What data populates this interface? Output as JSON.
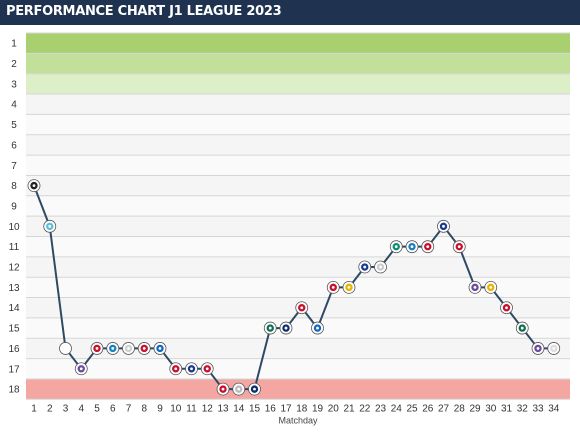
{
  "header": {
    "title": "PERFORMANCE CHART J1 LEAGUE 2023"
  },
  "colors": {
    "header_bg": "#1f3350",
    "line": "#2e4a63",
    "band_rank1": "#a8d06e",
    "band_rank2": "#c3e09a",
    "band_rank3": "#dcefc6",
    "band_relegation": "#f4a6a3"
  },
  "chart_data": {
    "type": "line",
    "title": "PERFORMANCE CHART J1 LEAGUE 2023",
    "xlabel": "Matchday",
    "ylabel": "",
    "y_tick_labels": [
      "1",
      "2",
      "3",
      "4",
      "5",
      "6",
      "7",
      "8",
      "9",
      "10",
      "11",
      "12",
      "13",
      "14",
      "15",
      "16",
      "17",
      "18"
    ],
    "ylim": [
      1,
      18
    ],
    "y_inverted": true,
    "grid": true,
    "x": [
      1,
      2,
      3,
      4,
      5,
      6,
      7,
      8,
      9,
      10,
      11,
      12,
      13,
      14,
      15,
      16,
      17,
      18,
      19,
      20,
      21,
      22,
      23,
      24,
      25,
      26,
      27,
      28,
      29,
      30,
      31,
      32,
      33,
      34
    ],
    "series": [
      {
        "values": [
          8,
          10,
          16,
          17,
          16,
          16,
          16,
          16,
          16,
          17,
          17,
          17,
          18,
          18,
          18,
          15,
          15,
          14,
          15,
          13,
          13,
          12,
          12,
          11,
          11,
          11,
          10,
          11,
          13,
          13,
          14,
          15,
          16,
          16
        ],
        "badge_colors": [
          "#222222",
          "#5bc0de",
          "#ffffff",
          "#6a4c9c",
          "#c8102e",
          "#1a7fc1",
          "#d0d0d0",
          "#c8102e",
          "#1565c0",
          "#c8102e",
          "#1a3a8f",
          "#c8102e",
          "#c8102e",
          "#bbbbbb",
          "#0d2e6e",
          "#0b6e4f",
          "#0d2e6e",
          "#c8102e",
          "#1565c0",
          "#c8102e",
          "#e8b400",
          "#1a3a8f",
          "#cccccc",
          "#0b8e6e",
          "#1a7fc1",
          "#c8102e",
          "#1a3a8f",
          "#c8102e",
          "#6a4c9c",
          "#e8b400",
          "#c8102e",
          "#0b6e4f",
          "#6a4c9c",
          "#dddddd"
        ]
      }
    ],
    "bands": [
      {
        "from": 1,
        "to": 1,
        "color": "#a8d06e"
      },
      {
        "from": 2,
        "to": 2,
        "color": "#c3e09a"
      },
      {
        "from": 3,
        "to": 3,
        "color": "#dcefc6"
      },
      {
        "from": 18,
        "to": 18,
        "color": "#f4a6a3"
      }
    ]
  }
}
